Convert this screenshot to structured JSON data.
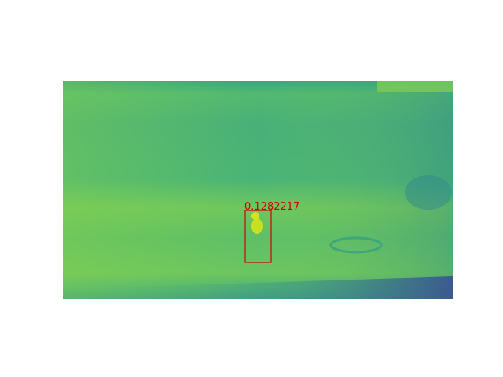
{
  "detection": {
    "score_label": "0.1282217"
  }
}
